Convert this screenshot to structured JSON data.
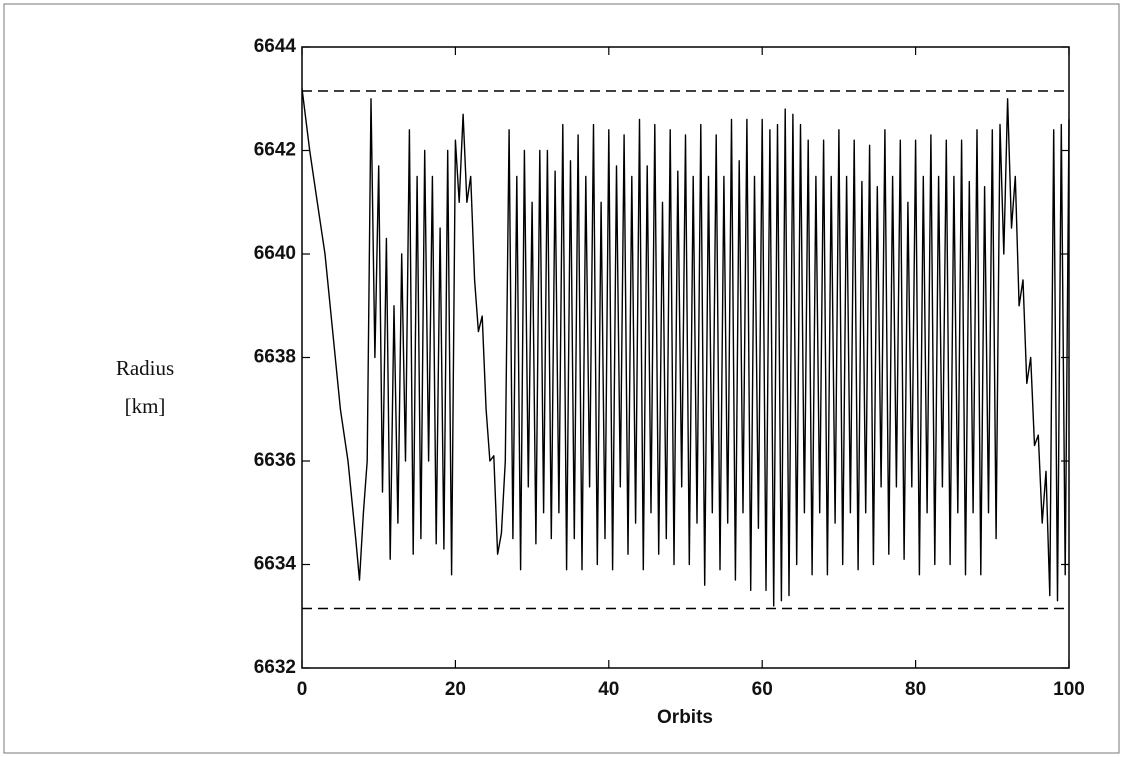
{
  "chart_data": {
    "type": "line",
    "ylabel": [
      "Radius",
      "[km]"
    ],
    "xlabel": "Orbits",
    "x": [
      0,
      1,
      2,
      3,
      4,
      5,
      6,
      7,
      7.5,
      8,
      8.5,
      9,
      9.5,
      10,
      10.5,
      11,
      11.5,
      12,
      12.5,
      13,
      13.5,
      14,
      14.5,
      15,
      15.5,
      16,
      16.5,
      17,
      17.5,
      18,
      18.5,
      19,
      19.5,
      20,
      20.5,
      21,
      21.5,
      22,
      22.5,
      23,
      23.5,
      24,
      24.5,
      25,
      25.5,
      26,
      26.5,
      27,
      27.5,
      28,
      28.5,
      29,
      29.5,
      30,
      30.5,
      31,
      31.5,
      32,
      32.5,
      33,
      33.5,
      34,
      34.5,
      35,
      35.5,
      36,
      36.5,
      37,
      37.5,
      38,
      38.5,
      39,
      39.5,
      40,
      40.5,
      41,
      41.5,
      42,
      42.5,
      43,
      43.5,
      44,
      44.5,
      45,
      45.5,
      46,
      46.5,
      47,
      47.5,
      48,
      48.5,
      49,
      49.5,
      50,
      50.5,
      51,
      51.5,
      52,
      52.5,
      53,
      53.5,
      54,
      54.5,
      55,
      55.5,
      56,
      56.5,
      57,
      57.5,
      58,
      58.5,
      59,
      59.5,
      60,
      60.5,
      61,
      61.5,
      62,
      62.5,
      63,
      63.5,
      64,
      64.5,
      65,
      65.5,
      66,
      66.5,
      67,
      67.5,
      68,
      68.5,
      69,
      69.5,
      70,
      70.5,
      71,
      71.5,
      72,
      72.5,
      73,
      73.5,
      74,
      74.5,
      75,
      75.5,
      76,
      76.5,
      77,
      77.5,
      78,
      78.5,
      79,
      79.5,
      80,
      80.5,
      81,
      81.5,
      82,
      82.5,
      83,
      83.5,
      84,
      84.5,
      85,
      85.5,
      86,
      86.5,
      87,
      87.5,
      88,
      88.5,
      89,
      89.5,
      90,
      90.5,
      91,
      91.5,
      92,
      92.5,
      93,
      93.5,
      94,
      94.5,
      95,
      95.5,
      96,
      96.5,
      97,
      97.5,
      98,
      98.5,
      99,
      99.5,
      100
    ],
    "series": [
      {
        "color": "#000000",
        "values": [
          6643.2,
          6642,
          6641,
          6640,
          6638.5,
          6637,
          6636,
          6634.5,
          6633.7,
          6635,
          6636,
          6643,
          6638,
          6641.7,
          6635.4,
          6640.3,
          6634.1,
          6639,
          6634.8,
          6640,
          6636,
          6642.4,
          6634.2,
          6641.5,
          6634.5,
          6642,
          6636,
          6641.5,
          6634.4,
          6640.5,
          6634.3,
          6642,
          6633.8,
          6642.2,
          6641,
          6642.7,
          6641,
          6641.5,
          6639.5,
          6638.5,
          6638.8,
          6637,
          6636,
          6636.1,
          6634.2,
          6634.6,
          6636,
          6642.4,
          6634.5,
          6641.5,
          6633.9,
          6642,
          6635.5,
          6641,
          6634.4,
          6642,
          6635,
          6642,
          6634.5,
          6641.6,
          6635,
          6642.5,
          6633.9,
          6641.8,
          6634.5,
          6642.3,
          6633.9,
          6641.5,
          6635.5,
          6642.5,
          6634,
          6641,
          6634.5,
          6642.4,
          6633.9,
          6641.7,
          6635.5,
          6642.3,
          6634.2,
          6641.5,
          6634.8,
          6642.6,
          6633.9,
          6641.7,
          6635,
          6642.5,
          6634.2,
          6641,
          6634.5,
          6642.4,
          6634,
          6641.6,
          6635.5,
          6642.3,
          6634,
          6641.5,
          6634.8,
          6642.5,
          6633.6,
          6641.5,
          6635,
          6642.3,
          6633.9,
          6641.5,
          6634.8,
          6642.6,
          6633.7,
          6641.8,
          6635,
          6642.6,
          6633.5,
          6641.5,
          6634.7,
          6642.6,
          6633.5,
          6642.4,
          6633.2,
          6642.5,
          6633.3,
          6642.8,
          6633.4,
          6642.7,
          6634,
          6642.5,
          6635,
          6642.2,
          6633.8,
          6641.5,
          6635,
          6642.2,
          6633.8,
          6641.5,
          6634.8,
          6642.4,
          6634,
          6641.5,
          6635,
          6642.2,
          6633.9,
          6641.4,
          6635,
          6642.1,
          6634,
          6641.3,
          6635.5,
          6642.4,
          6634.2,
          6641.5,
          6635.5,
          6642.2,
          6634.1,
          6641,
          6635.5,
          6642.2,
          6633.8,
          6641.5,
          6635,
          6642.3,
          6634,
          6641.5,
          6635.5,
          6642.2,
          6634,
          6641.5,
          6635,
          6642.2,
          6633.8,
          6641.4,
          6635,
          6642.4,
          6633.8,
          6641.3,
          6635,
          6642.4,
          6634.5,
          6642.5,
          6640,
          6643,
          6640.5,
          6641.5,
          6639,
          6639.5,
          6637.5,
          6638,
          6636.3,
          6636.5,
          6634.8,
          6635.8,
          6633.4,
          6642.4,
          6633.3,
          6642.5,
          6633.8,
          6642.6
        ]
      }
    ],
    "hlines": [
      {
        "value": 6643.15,
        "dashed": true
      },
      {
        "value": 6633.15,
        "dashed": true
      }
    ],
    "xlim": [
      0,
      100
    ],
    "xticks": [
      0,
      20,
      40,
      60,
      80,
      100
    ],
    "ylim": [
      6632,
      6644
    ],
    "yticks": [
      6632,
      6634,
      6636,
      6638,
      6640,
      6642,
      6644
    ]
  }
}
